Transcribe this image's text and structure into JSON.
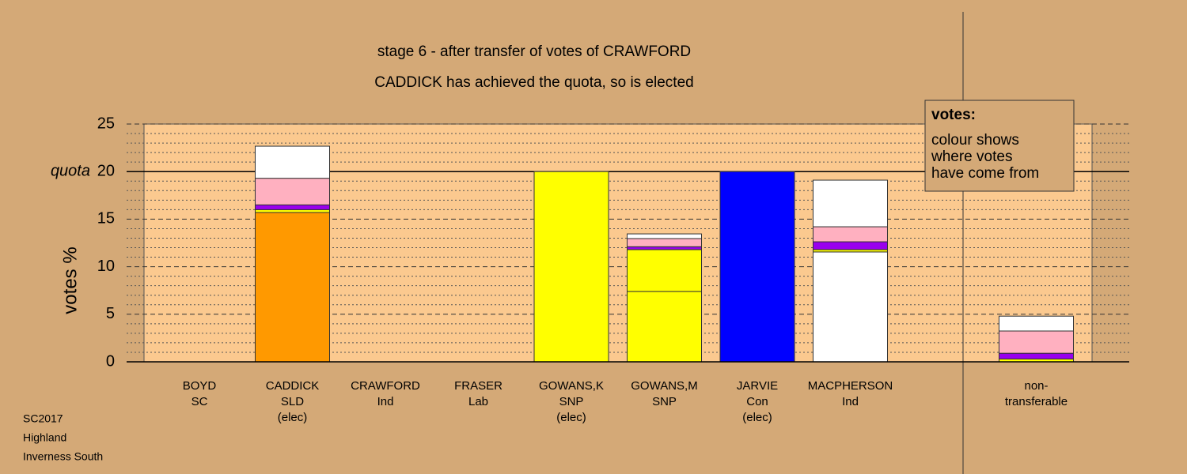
{
  "chart_data": {
    "type": "stacked-bar",
    "title": "stage 6 - after transfer of votes of CRAWFORD",
    "subtitle": "CADDICK has achieved the quota, so is elected",
    "y_label": "votes %",
    "quota": {
      "value": 20,
      "label": "quota"
    },
    "categories": [
      [
        "BOYD",
        "SC"
      ],
      [
        "CADDICK",
        "SLD",
        "(elec)"
      ],
      [
        "CRAWFORD",
        "Ind"
      ],
      [
        "FRASER",
        "Lab"
      ],
      [
        "GOWANS,K",
        "SNP",
        "(elec)"
      ],
      [
        "GOWANS,M",
        "SNP"
      ],
      [
        "JARVIE",
        "Con",
        "(elec)"
      ],
      [
        "MACPHERSON",
        "Ind"
      ],
      null,
      [
        "non-",
        "transferable"
      ]
    ],
    "series": [
      {
        "colors": [
          "#ffffff",
          "#ff9900",
          "#ffffff",
          "#ffffff",
          "#ffff00",
          "#ffff00",
          "#0000ff",
          "#ffffff",
          null,
          "#ffffff"
        ],
        "values": [
          0,
          15.7,
          0,
          0,
          20,
          7.4,
          20,
          11.55,
          null,
          0
        ]
      },
      {
        "color": "#ffff00",
        "values": [
          0,
          0.3,
          0,
          0,
          0,
          4.4,
          0,
          0.25,
          null,
          0.3
        ]
      },
      {
        "color": "#9900ee",
        "values": [
          0,
          0.5,
          0,
          0,
          0,
          0.3,
          0,
          0.82,
          null,
          0.6
        ]
      },
      {
        "color": "#ffb0c0",
        "values": [
          0,
          2.8,
          0,
          0,
          0,
          0.86,
          0,
          1.58,
          null,
          2.34
        ]
      },
      {
        "color": "#ffffff",
        "values": [
          0,
          3.37,
          0,
          0,
          0,
          0.49,
          0,
          4.9,
          null,
          1.56
        ]
      }
    ],
    "ylim": [
      0,
      25
    ],
    "yticks": [
      0,
      5,
      10,
      15,
      20,
      25
    ],
    "minor_yticks": [
      1,
      2,
      3,
      4,
      6,
      7,
      8,
      9,
      11,
      12,
      13,
      14,
      16,
      17,
      18,
      19,
      21,
      22,
      23,
      24
    ],
    "grid": true,
    "legend": {
      "heading": "votes:",
      "lines": [
        "colour shows",
        "where votes",
        "have come from"
      ]
    },
    "footer": [
      "SC2017",
      "Highland",
      "Inverness South"
    ]
  }
}
